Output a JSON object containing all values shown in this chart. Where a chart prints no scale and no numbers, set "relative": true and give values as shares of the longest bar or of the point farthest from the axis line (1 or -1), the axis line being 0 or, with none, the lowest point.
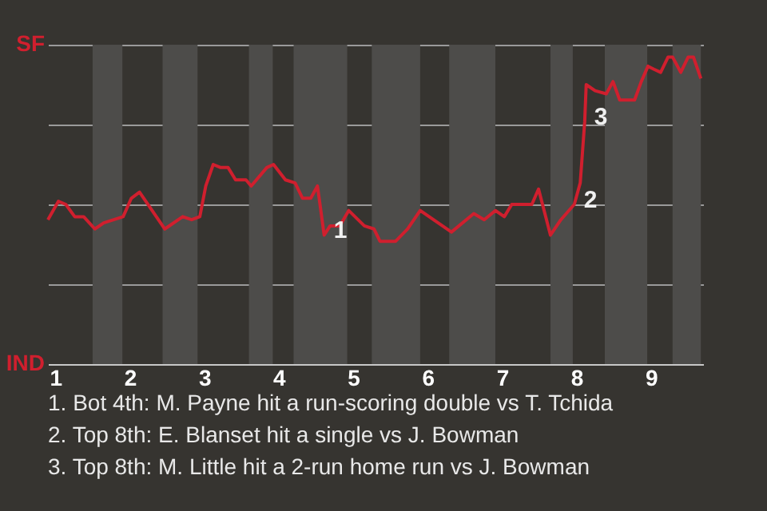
{
  "chart_data": {
    "type": "line",
    "x": [
      0.9,
      1.04,
      1.14,
      1.26,
      1.38,
      1.53,
      1.65,
      1.91,
      2.02,
      2.13,
      2.47,
      2.71,
      2.83,
      2.94,
      3.02,
      3.12,
      3.22,
      3.32,
      3.42,
      3.56,
      3.63,
      3.84,
      3.93,
      4.09,
      4.22,
      4.32,
      4.43,
      4.52,
      4.56,
      4.61,
      4.69,
      4.82,
      4.94,
      5.15,
      5.28,
      5.36,
      5.57,
      5.73,
      5.9,
      6.32,
      6.62,
      6.76,
      6.91,
      7.03,
      7.13,
      7.4,
      7.49,
      7.65,
      7.79,
      7.97,
      8.05,
      8.11,
      8.13,
      8.25,
      8.4,
      8.49,
      8.58,
      8.78,
      8.87,
      8.96,
      9.04,
      9.13,
      9.23,
      9.29,
      9.4,
      9.5,
      9.57,
      9.67
    ],
    "relative": true,
    "series": [
      {
        "color": "#d01f2e",
        "values": [
          0.47,
          0.53,
          0.52,
          0.48,
          0.48,
          0.44,
          0.46,
          0.48,
          0.54,
          0.56,
          0.44,
          0.48,
          0.47,
          0.48,
          0.58,
          0.65,
          0.64,
          0.64,
          0.6,
          0.6,
          0.58,
          0.64,
          0.65,
          0.6,
          0.59,
          0.54,
          0.54,
          0.58,
          0.51,
          0.42,
          0.45,
          0.45,
          0.5,
          0.45,
          0.44,
          0.4,
          0.4,
          0.44,
          0.5,
          0.43,
          0.49,
          0.47,
          0.5,
          0.48,
          0.52,
          0.52,
          0.57,
          0.42,
          0.47,
          0.52,
          0.59,
          0.79,
          0.91,
          0.89,
          0.88,
          0.92,
          0.86,
          0.86,
          0.92,
          0.97,
          0.96,
          0.95,
          1,
          1,
          0.95,
          1,
          1,
          0.93
        ]
      }
    ],
    "xlim": [
      0.9,
      9.7
    ],
    "xticks": [
      1,
      2,
      3,
      4,
      5,
      6,
      7,
      8,
      9
    ],
    "grid": "y",
    "bands": [
      {
        "axis": "x",
        "from": 1.5,
        "to": 1.9,
        "color": "#4d4c4a"
      },
      {
        "axis": "x",
        "from": 2.44,
        "to": 2.91,
        "color": "#4d4c4a"
      },
      {
        "axis": "x",
        "from": 3.6,
        "to": 3.92,
        "color": "#4d4c4a"
      },
      {
        "axis": "x",
        "from": 4.2,
        "to": 4.92,
        "color": "#4d4c4a"
      },
      {
        "axis": "x",
        "from": 5.25,
        "to": 5.9,
        "color": "#4d4c4a"
      },
      {
        "axis": "x",
        "from": 6.29,
        "to": 6.91,
        "color": "#4d4c4a"
      },
      {
        "axis": "x",
        "from": 7.65,
        "to": 7.95,
        "color": "#4d4c4a"
      },
      {
        "axis": "x",
        "from": 8.38,
        "to": 8.95,
        "color": "#4d4c4a"
      },
      {
        "axis": "x",
        "from": 9.29,
        "to": 9.67,
        "color": "#4d4c4a"
      }
    ],
    "annotations": [
      "SF",
      "IND",
      {
        "text": "1",
        "x": 4.61,
        "y": 0.42
      },
      {
        "text": "2",
        "x": 7.97,
        "y": 0.52
      },
      {
        "text": "3",
        "x": 8.11,
        "y": 0.79
      },
      "1. Bot 4th: M. Payne hit a run-scoring double vs T. Tchida",
      "2. Top 8th: E. Blanset hit a single vs J. Bowman",
      "3. Top 8th: M. Little hit a 2-run home run vs J. Bowman"
    ]
  }
}
